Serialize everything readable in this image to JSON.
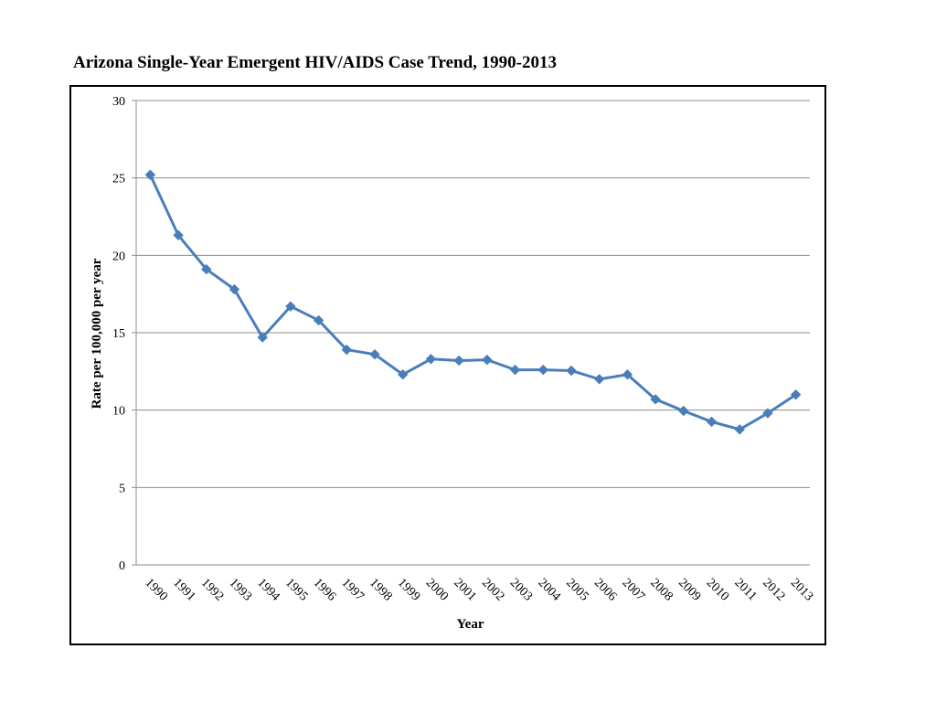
{
  "page": {
    "title": "Arizona Single-Year Emergent HIV/AIDS Case Trend, 1990-2013"
  },
  "colors": {
    "series": "#4a7ebb",
    "grid": "#8c8c8c",
    "frame": "#000000"
  },
  "chart_data": {
    "type": "line",
    "title": "Arizona Single-Year Emergent HIV/AIDS Case Trend, 1990-2013",
    "xlabel": "Year",
    "ylabel": "Rate per 100,000 per year",
    "ylim": [
      0,
      30
    ],
    "yticks": [
      0,
      5,
      10,
      15,
      20,
      25,
      30
    ],
    "grid": true,
    "legend": "none",
    "categories": [
      "1990",
      "1991",
      "1992",
      "1993",
      "1994",
      "1995",
      "1996",
      "1997",
      "1998",
      "1999",
      "2000",
      "2001",
      "2002",
      "2003",
      "2004",
      "2005",
      "2006",
      "2007",
      "2008",
      "2009",
      "2010",
      "2011",
      "2012",
      "2013"
    ],
    "series": [
      {
        "name": "Rate per 100,000",
        "marker": "diamond",
        "values": [
          25.2,
          21.3,
          19.1,
          17.8,
          14.7,
          16.7,
          15.8,
          13.9,
          13.6,
          12.3,
          13.3,
          13.2,
          13.25,
          12.6,
          12.6,
          12.55,
          12.0,
          12.3,
          10.7,
          9.95,
          9.25,
          8.75,
          9.8,
          11.0
        ]
      }
    ]
  }
}
